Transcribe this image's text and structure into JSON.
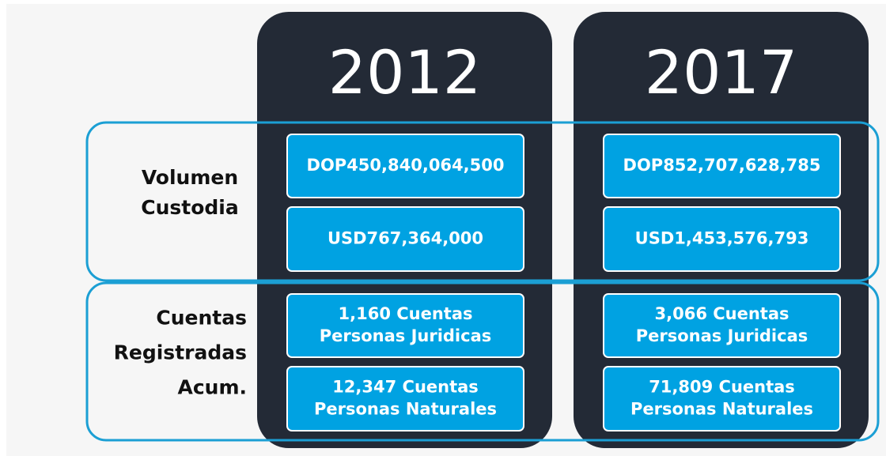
{
  "columns": [
    "2012",
    "2017"
  ],
  "rows": [
    {
      "label": [
        "Volumen",
        "Custodia"
      ],
      "cells": [
        [
          [
            "DOP450,840,064,500"
          ],
          [
            "USD767,364,000"
          ]
        ],
        [
          [
            "DOP852,707,628,785"
          ],
          [
            "USD1,453,576,793"
          ]
        ]
      ]
    },
    {
      "label": [
        "Cuentas",
        "Registradas",
        "Acum."
      ],
      "cells": [
        [
          [
            "1,160 Cuentas",
            "Personas Juridicas"
          ],
          [
            "12,347 Cuentas",
            "Personas Naturales"
          ]
        ],
        [
          [
            "3,066 Cuentas",
            "Personas Juridicas"
          ],
          [
            "71,809 Cuentas",
            "Personas Naturales"
          ]
        ]
      ]
    }
  ]
}
